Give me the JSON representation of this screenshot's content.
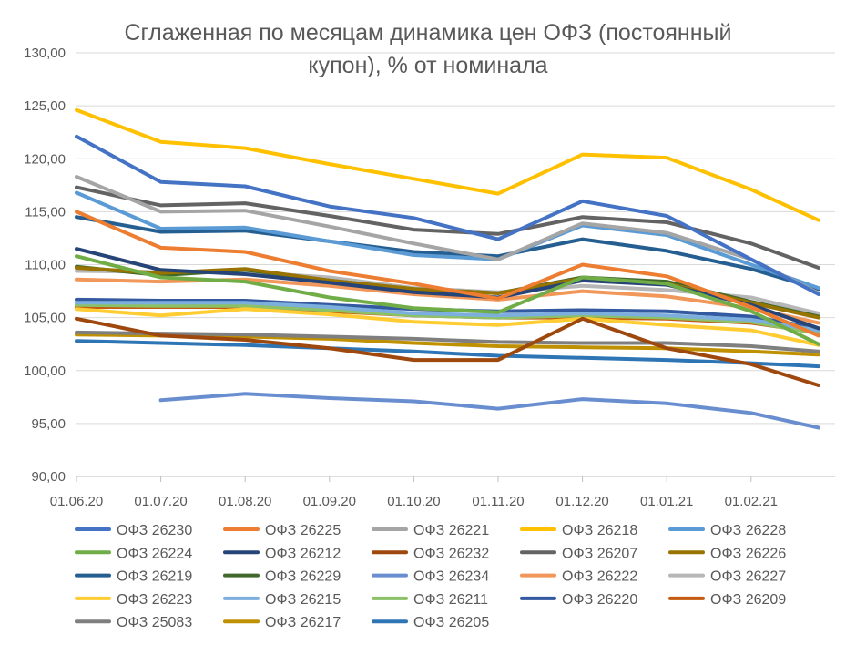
{
  "chart_data": {
    "type": "line",
    "title_lines": [
      "Сглаженная по месяцам динамика цен ОФЗ (постоянный",
      "купон), % от номинала"
    ],
    "xlabel": "",
    "ylabel": "",
    "ylim": [
      90,
      130
    ],
    "y_ticks": [
      "130,00",
      "125,00",
      "120,00",
      "115,00",
      "110,00",
      "105,00",
      "100,00",
      "95,00",
      "90,00"
    ],
    "x_ticks": [
      "01.06.20",
      "01.07.20",
      "01.08.20",
      "01.09.20",
      "01.10.20",
      "01.11.20",
      "01.12.20",
      "01.01.21",
      "01.02.21"
    ],
    "x": [
      0,
      1,
      2,
      3,
      4,
      5,
      6,
      7,
      8,
      8.8
    ],
    "grid": "horizontal",
    "legend_position": "bottom",
    "series": [
      {
        "name": "ОФЗ 26230",
        "color": "#4472C4",
        "values": [
          122.1,
          117.8,
          117.4,
          115.5,
          114.4,
          112.4,
          116.0,
          114.6,
          110.5,
          107.2
        ]
      },
      {
        "name": "ОФЗ 26225",
        "color": "#ED7D31",
        "values": [
          115.0,
          111.6,
          111.2,
          109.4,
          108.2,
          106.8,
          110.0,
          108.9,
          106.0,
          103.3
        ]
      },
      {
        "name": "ОФЗ 26221",
        "color": "#A5A5A5",
        "values": [
          118.3,
          115.0,
          115.1,
          113.6,
          112.0,
          110.5,
          113.9,
          113.0,
          110.5,
          107.3
        ]
      },
      {
        "name": "ОФЗ 26218",
        "color": "#FFC000",
        "values": [
          124.6,
          121.6,
          121.0,
          119.5,
          118.1,
          116.7,
          120.4,
          120.1,
          117.1,
          114.2
        ]
      },
      {
        "name": "ОФЗ 26228",
        "color": "#5B9BD5",
        "values": [
          116.8,
          113.4,
          113.5,
          112.2,
          110.9,
          110.5,
          113.7,
          112.8,
          110.0,
          107.8
        ]
      },
      {
        "name": "ОФЗ 26224",
        "color": "#70AD47",
        "values": [
          110.8,
          108.8,
          108.4,
          106.9,
          105.9,
          105.5,
          108.8,
          108.2,
          105.6,
          102.5
        ]
      },
      {
        "name": "ОФЗ 26212",
        "color": "#264478",
        "values": [
          111.5,
          109.5,
          109.1,
          108.3,
          107.4,
          106.9,
          108.5,
          108.1,
          106.2,
          104.0
        ]
      },
      {
        "name": "ОФЗ 26232",
        "color": "#9E480E",
        "values": [
          104.9,
          103.3,
          102.9,
          102.1,
          101.0,
          101.0,
          104.9,
          102.1,
          100.6,
          98.6
        ]
      },
      {
        "name": "ОФЗ 26207",
        "color": "#636363",
        "values": [
          117.3,
          115.6,
          115.8,
          114.6,
          113.3,
          112.9,
          114.5,
          114.0,
          112.0,
          109.7
        ]
      },
      {
        "name": "ОФЗ 26226",
        "color": "#997300",
        "values": [
          109.7,
          109.2,
          109.6,
          108.5,
          107.7,
          107.3,
          108.7,
          108.2,
          106.4,
          105.0
        ]
      },
      {
        "name": "ОФЗ 26219",
        "color": "#255E91",
        "values": [
          114.5,
          113.1,
          113.2,
          112.2,
          111.2,
          110.8,
          112.4,
          111.3,
          109.6,
          107.7
        ]
      },
      {
        "name": "ОФЗ 26229",
        "color": "#43682B",
        "values": [
          109.8,
          109.0,
          109.5,
          108.5,
          107.7,
          107.3,
          108.8,
          108.4,
          106.5,
          105.1
        ]
      },
      {
        "name": "ОФЗ 26234",
        "color": "#698ED0",
        "values": [
          null,
          97.2,
          97.8,
          97.4,
          97.1,
          96.4,
          97.3,
          96.9,
          96.0,
          94.6
        ]
      },
      {
        "name": "ОФЗ 26222",
        "color": "#F1975A",
        "values": [
          108.6,
          108.4,
          108.6,
          108.0,
          107.2,
          106.7,
          107.5,
          107.0,
          105.9,
          104.5
        ]
      },
      {
        "name": "ОФЗ 26227",
        "color": "#B7B7B7",
        "values": [
          109.4,
          109.3,
          109.3,
          108.8,
          107.8,
          107.4,
          108.0,
          107.6,
          106.9,
          105.4
        ]
      },
      {
        "name": "ОФЗ 26223",
        "color": "#FFCD33",
        "values": [
          105.8,
          105.2,
          105.8,
          105.3,
          104.6,
          104.3,
          104.9,
          104.3,
          103.8,
          102.4
        ]
      },
      {
        "name": "ОФЗ 26215",
        "color": "#7CAFDD",
        "values": [
          106.4,
          106.4,
          106.4,
          106.0,
          105.4,
          105.2,
          105.4,
          105.2,
          104.8,
          103.8
        ]
      },
      {
        "name": "ОФЗ 26211",
        "color": "#8CC168",
        "values": [
          106.2,
          106.1,
          106.1,
          105.7,
          105.2,
          105.0,
          105.2,
          105.0,
          104.6,
          103.5
        ]
      },
      {
        "name": "ОФЗ 26220",
        "color": "#335AA1",
        "values": [
          106.7,
          106.6,
          106.6,
          106.2,
          105.8,
          105.6,
          105.7,
          105.6,
          105.1,
          104.0
        ]
      },
      {
        "name": "ОФЗ 26209",
        "color": "#C55A11",
        "values": [
          106.0,
          106.0,
          106.0,
          105.6,
          105.2,
          105.0,
          105.0,
          104.9,
          104.5,
          103.6
        ]
      },
      {
        "name": "ОФЗ 25083",
        "color": "#7F7F7F",
        "values": [
          103.6,
          103.5,
          103.4,
          103.2,
          103.0,
          102.7,
          102.6,
          102.6,
          102.3,
          101.8
        ]
      },
      {
        "name": "ОФЗ 26217",
        "color": "#BF9000",
        "values": [
          103.4,
          103.3,
          103.2,
          103.0,
          102.6,
          102.3,
          102.2,
          102.1,
          101.8,
          101.5
        ]
      },
      {
        "name": "ОФЗ 26205",
        "color": "#2E75B6",
        "values": [
          102.8,
          102.6,
          102.4,
          102.1,
          101.8,
          101.4,
          101.2,
          101.0,
          100.7,
          100.4
        ]
      }
    ]
  }
}
